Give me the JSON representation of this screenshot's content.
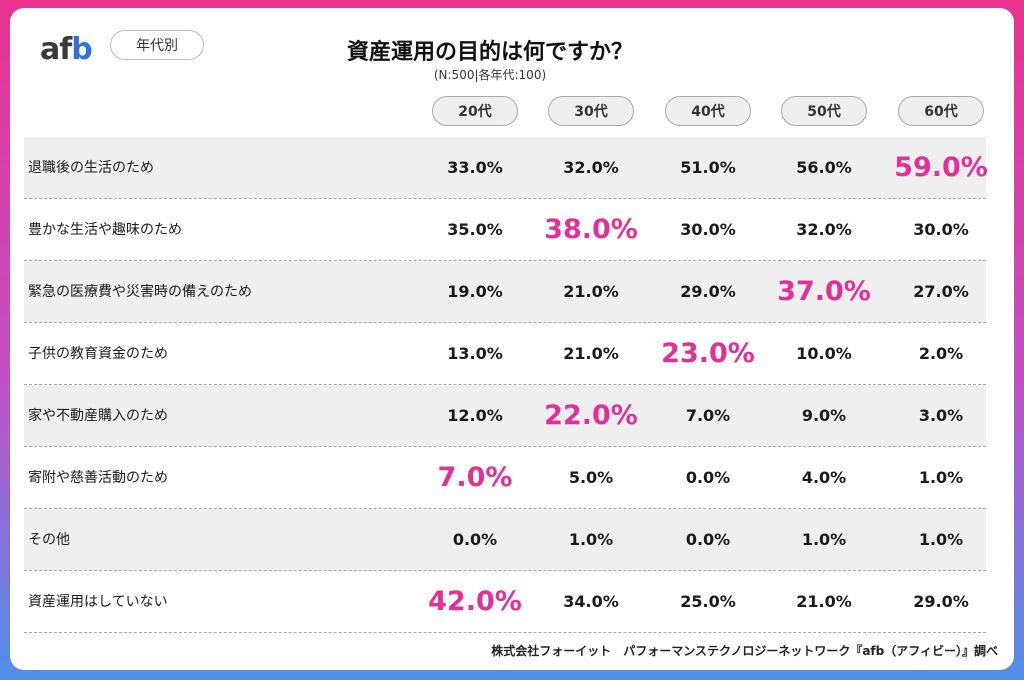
{
  "brand": {
    "logo_a": "af",
    "logo_b": "b"
  },
  "segment_label": "年代別",
  "chart_data": {
    "type": "table",
    "title": "資産運用の目的は何ですか？",
    "subtitle": "(N:500|各年代:100)",
    "columns": [
      "20代",
      "30代",
      "40代",
      "50代",
      "60代"
    ],
    "rows": [
      {
        "label": "退職後の生活のため",
        "values": [
          "33.0%",
          "32.0%",
          "51.0%",
          "56.0%",
          "59.0%"
        ],
        "highlight": 4
      },
      {
        "label": "豊かな生活や趣味のため",
        "values": [
          "35.0%",
          "38.0%",
          "30.0%",
          "32.0%",
          "30.0%"
        ],
        "highlight": 1
      },
      {
        "label": "緊急の医療費や災害時の備えのため",
        "values": [
          "19.0%",
          "21.0%",
          "29.0%",
          "37.0%",
          "27.0%"
        ],
        "highlight": 3
      },
      {
        "label": "子供の教育資金のため",
        "values": [
          "13.0%",
          "21.0%",
          "23.0%",
          "10.0%",
          "2.0%"
        ],
        "highlight": 2
      },
      {
        "label": "家や不動産購入のため",
        "values": [
          "12.0%",
          "22.0%",
          "7.0%",
          "9.0%",
          "3.0%"
        ],
        "highlight": 1
      },
      {
        "label": "寄附や慈善活動のため",
        "values": [
          "7.0%",
          "5.0%",
          "0.0%",
          "4.0%",
          "1.0%"
        ],
        "highlight": 0
      },
      {
        "label": "その他",
        "values": [
          "0.0%",
          "1.0%",
          "0.0%",
          "1.0%",
          "1.0%"
        ],
        "highlight": -1
      },
      {
        "label": "資産運用はしていない",
        "values": [
          "42.0%",
          "34.0%",
          "25.0%",
          "21.0%",
          "29.0%"
        ],
        "highlight": 0
      }
    ],
    "highlight_color": "#e2309a"
  },
  "footer": "株式会社フォーイット　パフォーマンステクノロジーネットワーク『afb（アフィビー）』調べ"
}
